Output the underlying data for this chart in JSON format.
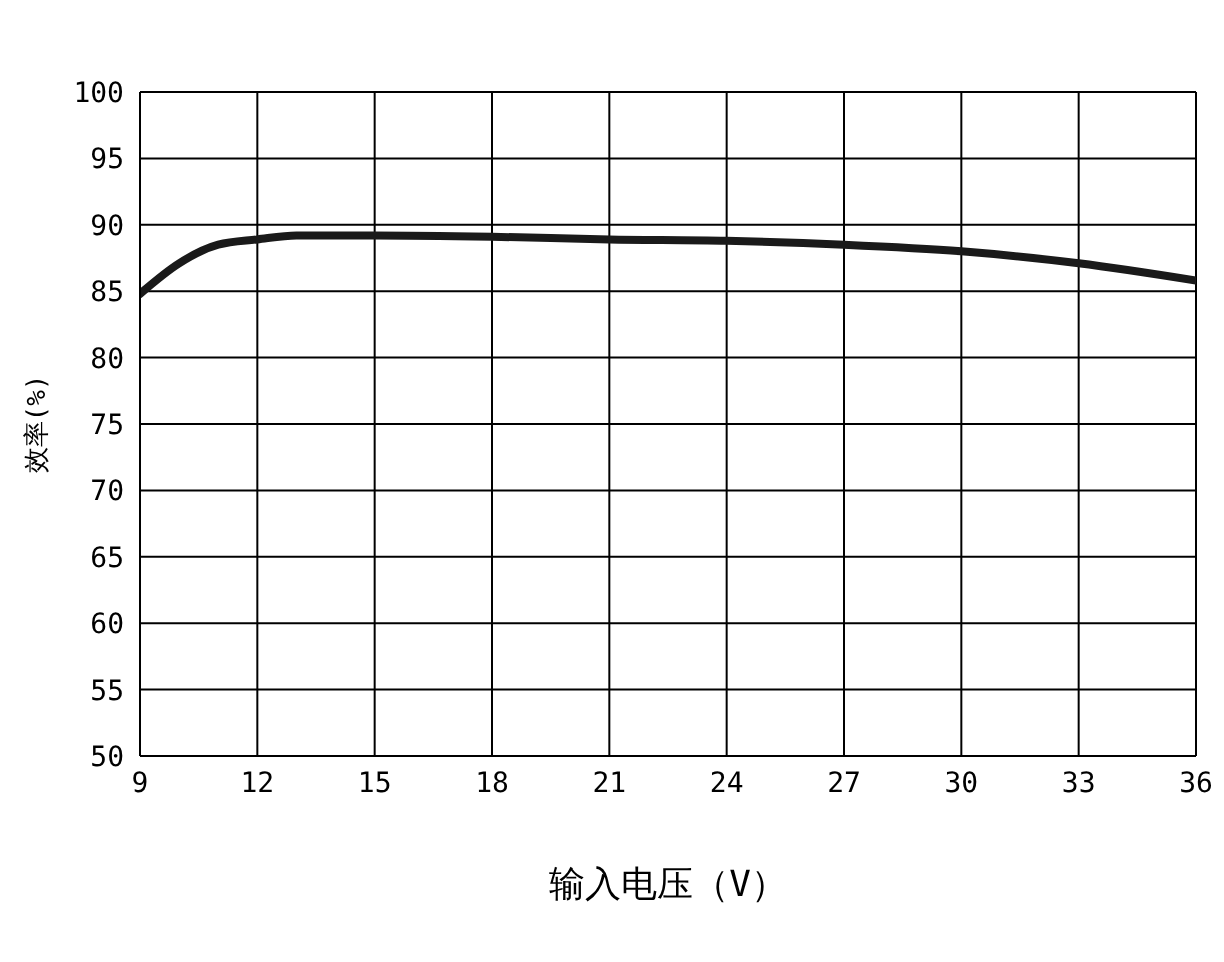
{
  "chart_data": {
    "type": "line",
    "xlabel": "输入电压（V）",
    "ylabel": "效率(%)",
    "x": [
      9,
      10,
      11,
      12,
      13,
      15,
      18,
      21,
      24,
      27,
      30,
      33,
      36
    ],
    "series": [
      {
        "color": "#1a1a1a",
        "values": [
          84.8,
          87.1,
          88.5,
          88.9,
          89.2,
          89.2,
          89.1,
          88.9,
          88.8,
          88.5,
          88.0,
          87.1,
          85.8
        ]
      }
    ],
    "xlim": [
      9,
      36
    ],
    "xticks": [
      9,
      12,
      15,
      18,
      21,
      24,
      27,
      30,
      33,
      36
    ],
    "ylim": [
      50,
      100
    ],
    "yticks": [
      50,
      55,
      60,
      65,
      70,
      75,
      80,
      85,
      90,
      95,
      100
    ],
    "grid": true,
    "marker": "none",
    "line_style": "solid"
  }
}
